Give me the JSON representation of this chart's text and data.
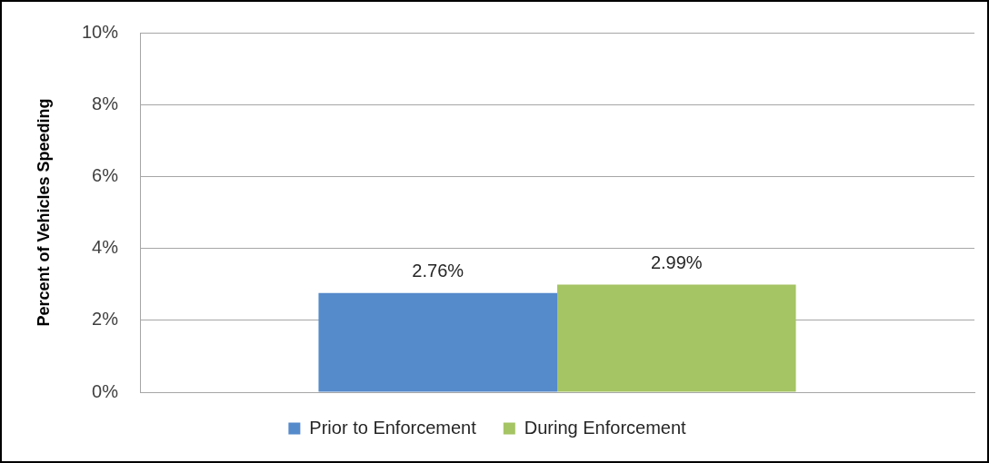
{
  "chart_data": {
    "type": "bar",
    "categories": [
      null
    ],
    "series": [
      {
        "name": "Prior to Enforcement",
        "color": "#558acb",
        "values": [
          2.76
        ],
        "value_labels": [
          "2.76%"
        ]
      },
      {
        "name": "During Enforcement",
        "color": "#a5c463",
        "values": [
          2.99
        ],
        "value_labels": [
          "2.99%"
        ]
      }
    ],
    "ylabel": "Percent of Vehicles Speeding",
    "ylim": [
      0,
      10
    ],
    "yticks": [
      {
        "value": 0,
        "label": "0%"
      },
      {
        "value": 2,
        "label": "2%"
      },
      {
        "value": 4,
        "label": "4%"
      },
      {
        "value": 6,
        "label": "6%"
      },
      {
        "value": 8,
        "label": "8%"
      },
      {
        "value": 10,
        "label": "10%"
      }
    ],
    "grid": "y",
    "legend": "bottom",
    "tick_labels": "y"
  }
}
